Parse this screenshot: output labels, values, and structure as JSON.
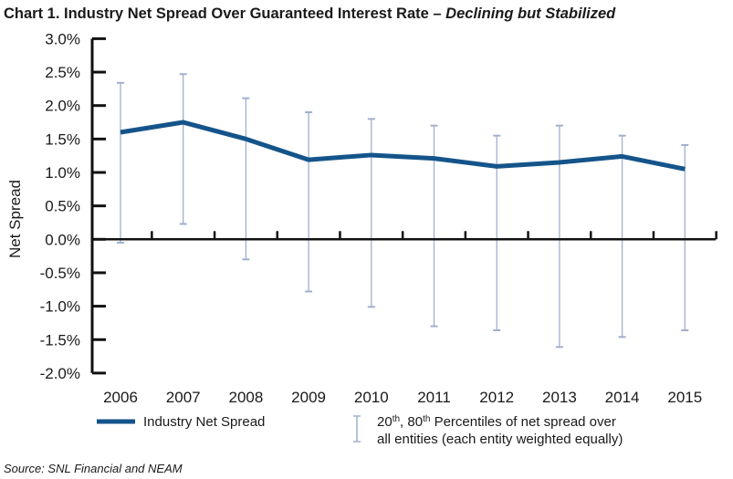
{
  "chart_data": {
    "type": "line",
    "title": "Chart 1. Industry Net Spread Over Guaranteed Interest Rate –",
    "title_italic": "Declining but Stabilized",
    "xlabel": "",
    "ylabel": "Net Spread",
    "ylim": [
      -2.0,
      3.0
    ],
    "y_ticks": [
      "3.0%",
      "2.5%",
      "2.0%",
      "1.5%",
      "1.0%",
      "0.5%",
      "0.0%",
      "-0.5%",
      "-1.0%",
      "-1.5%",
      "-2.0%"
    ],
    "y_tick_values": [
      3.0,
      2.5,
      2.0,
      1.5,
      1.0,
      0.5,
      0.0,
      -0.5,
      -1.0,
      -1.5,
      -2.0
    ],
    "categories": [
      "2006",
      "2007",
      "2008",
      "2009",
      "2010",
      "2011",
      "2012",
      "2013",
      "2014",
      "2015"
    ],
    "grid": false,
    "legend_placement": "bottom",
    "series": [
      {
        "name": "Industry Net Spread",
        "color": "#14548a",
        "values": [
          1.6,
          1.75,
          1.5,
          1.19,
          1.26,
          1.21,
          1.09,
          1.15,
          1.24,
          1.05
        ]
      }
    ],
    "percentile_range": {
      "legend_line1": "20th, 80th Percentiles of net spread over",
      "legend_line2": "all entities (each entity weighted equally)",
      "color": "#9fb0cc",
      "p80": [
        2.34,
        2.47,
        2.11,
        1.9,
        1.8,
        1.7,
        1.55,
        1.7,
        1.55,
        1.41
      ],
      "p20": [
        -0.05,
        0.23,
        -0.3,
        -0.78,
        -1.01,
        -1.3,
        -1.36,
        -1.61,
        -1.46,
        -1.36
      ]
    },
    "source": "Source: SNL Financial and NEAM"
  }
}
